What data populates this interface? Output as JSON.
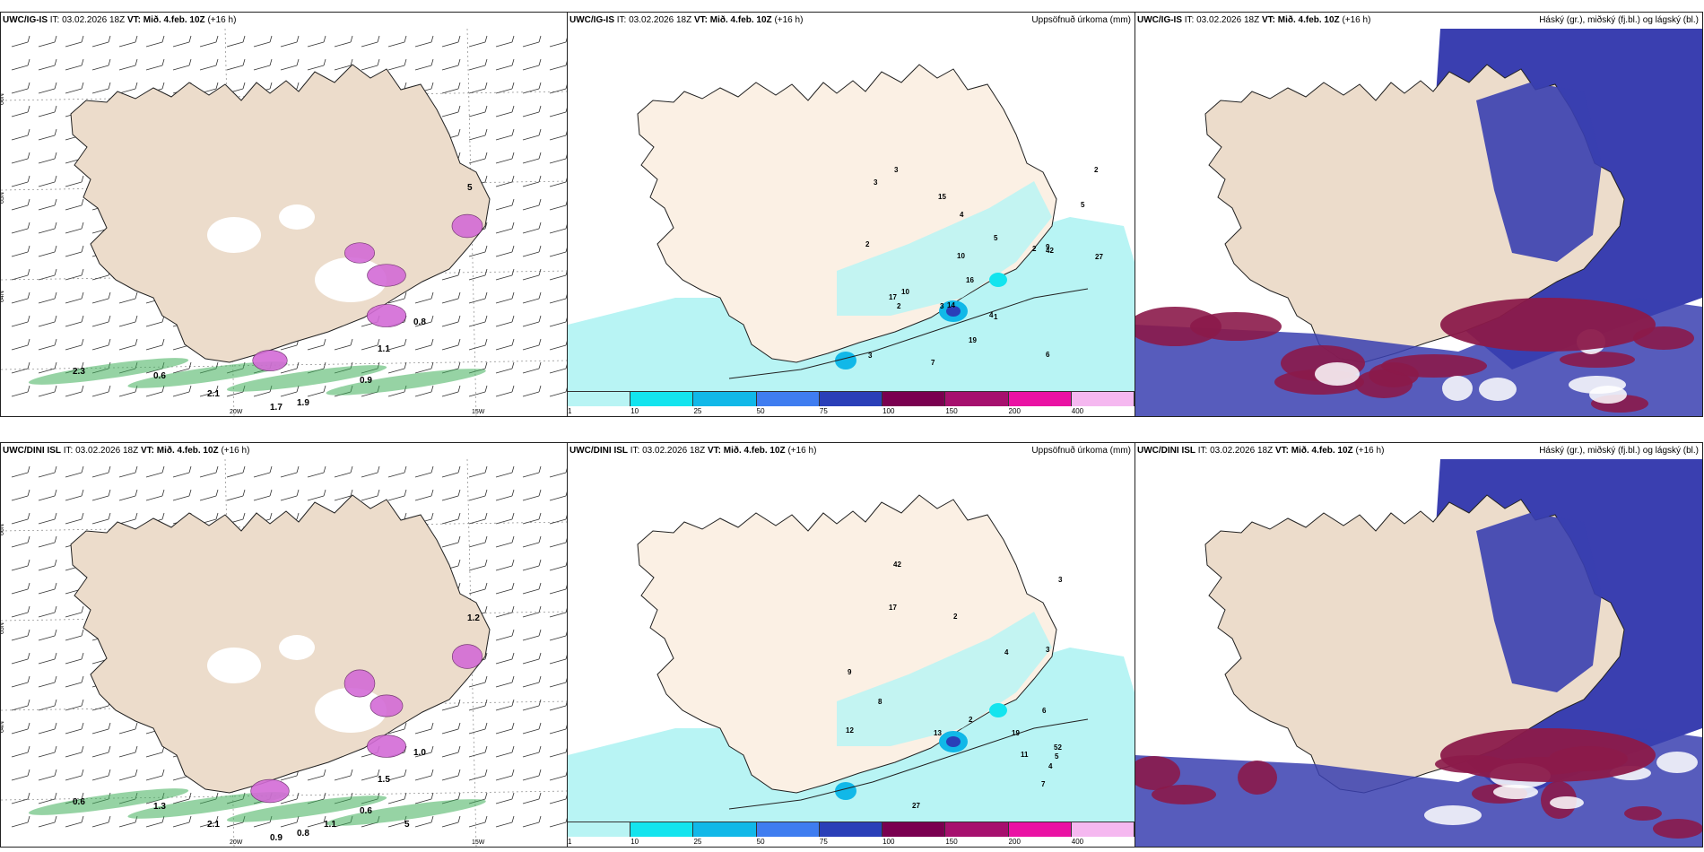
{
  "panels": [
    {
      "id": "p1",
      "model": "UWC/IG-IS",
      "it": "IT: 03.02.2026 18Z",
      "vt_label": "VT:",
      "vt": "Mið. 4.feb. 10Z",
      "lead": "(+16 h)",
      "right_title": "",
      "type": "wind",
      "lat_labels": [
        "66N",
        "65N",
        "64N"
      ],
      "lon_labels": [
        "20W",
        "15W"
      ],
      "values": [
        "2.3",
        "0.6",
        "0.8",
        "1.1",
        "0.9",
        "2.1",
        "1.7",
        "1.9",
        "5"
      ]
    },
    {
      "id": "p2",
      "model": "UWC/IG-IS",
      "it": "IT: 03.02.2026 18Z",
      "vt_label": "VT:",
      "vt": "Mið. 4.feb. 10Z",
      "lead": "(+16 h)",
      "right_title": "Uppsöfnuð úrkoma (mm)",
      "type": "precip",
      "values": [
        "2",
        "6",
        "9",
        "16",
        "19",
        "15",
        "10",
        "17",
        "14",
        "27",
        "2",
        "3",
        "7",
        "5",
        "3",
        "2",
        "1",
        "4",
        "2",
        "5",
        "4",
        "3",
        "10",
        "42",
        "3"
      ]
    },
    {
      "id": "p3",
      "model": "UWC/IG-IS",
      "it": "IT: 03.02.2026 18Z",
      "vt_label": "VT:",
      "vt": "Mið. 4.feb. 10Z",
      "lead": "(+16 h)",
      "right_title": "Háský (gr.), miðský (fj.bl.) og lágský (bl.)",
      "type": "cloud",
      "values": []
    },
    {
      "id": "p4",
      "model": "UWC/DINI ISL",
      "it": "IT: 03.02.2026 18Z",
      "vt_label": "VT:",
      "vt": "Mið. 4.feb. 10Z",
      "lead": "(+16 h)",
      "right_title": "",
      "type": "wind",
      "lat_labels": [
        "66N",
        "65N",
        "64N"
      ],
      "lon_labels": [
        "20W",
        "15W"
      ],
      "values": [
        "0.6",
        "1.3",
        "1.0",
        "1.5",
        "0.6",
        "2.1",
        "0.9",
        "0.8",
        "1.2",
        "1.1",
        "5"
      ]
    },
    {
      "id": "p5",
      "model": "UWC/DINI ISL",
      "it": "IT: 03.02.2026 18Z",
      "vt_label": "VT:",
      "vt": "Mið. 4.feb. 10Z",
      "lead": "(+16 h)",
      "right_title": "Uppsöfnuð úrkoma (mm)",
      "type": "precip",
      "values": [
        "2",
        "7",
        "3",
        "11",
        "17",
        "19",
        "5",
        "27",
        "4",
        "8",
        "13",
        "12",
        "9",
        "6",
        "42",
        "52",
        "3",
        "2",
        "4"
      ]
    },
    {
      "id": "p6",
      "model": "UWC/DINI ISL",
      "it": "IT: 03.02.2026 18Z",
      "vt_label": "VT:",
      "vt": "Mið. 4.feb. 10Z",
      "lead": "(+16 h)",
      "right_title": "Háský (gr.), miðský (fj.bl.) og lágský (bl.)",
      "type": "cloud",
      "values": []
    }
  ],
  "precip_legend": {
    "labels": [
      "1",
      "10",
      "25",
      "50",
      "75",
      "100",
      "150",
      "200",
      "400"
    ],
    "colors": [
      "#b8f4f4",
      "#13e4ee",
      "#11b8e8",
      "#3f7df0",
      "#2a3fb8",
      "#7a0050",
      "#a6106e",
      "#ea12a4",
      "#f5b8f0"
    ]
  },
  "colors": {
    "land": "#ecdccb",
    "land_light": "#fbf0e4",
    "cloud_high": "#3a3fb0",
    "cloud_mid": "#8b1a4a",
    "precip_green": "#3fae5a",
    "precip_pink": "#d36bd6"
  }
}
